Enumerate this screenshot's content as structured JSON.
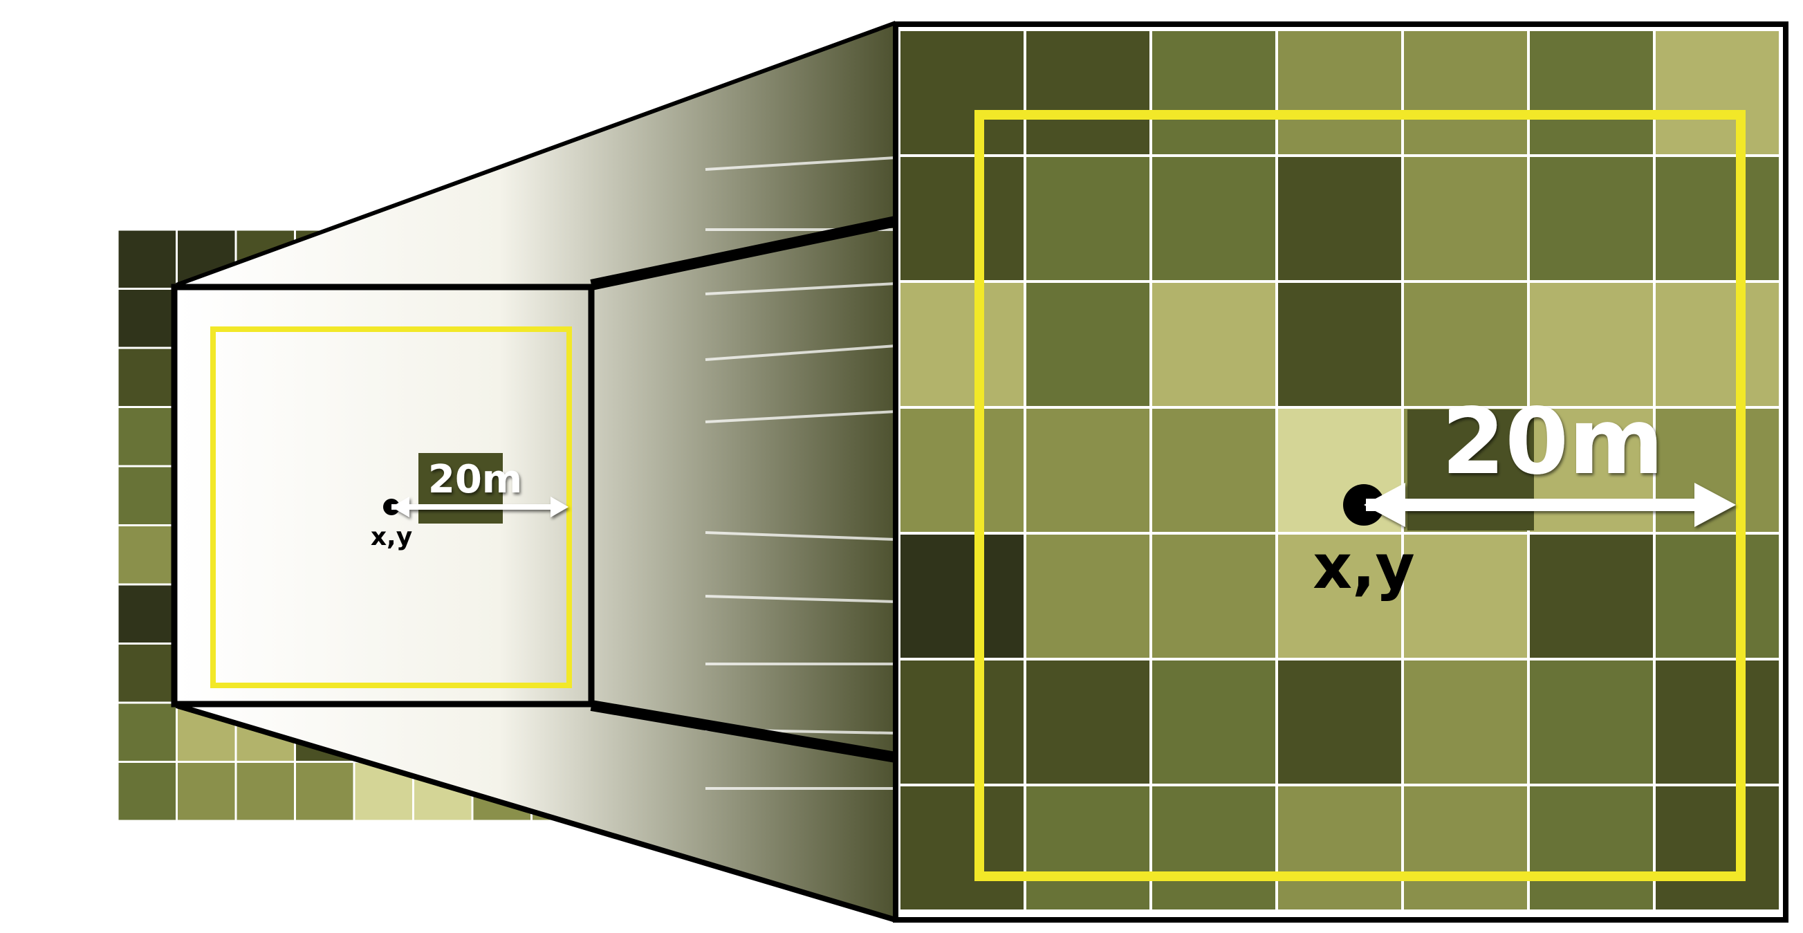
{
  "palette": {
    "darkest": "#30341b",
    "dark": "#4a5024",
    "mid": "#687337",
    "midlight": "#8a904b",
    "light": "#b2b36b",
    "lightest": "#d4d596",
    "grid_line": "#ffffff",
    "frame": "#000000",
    "highlight": "#f2e828",
    "label": "#ffffff",
    "dot": "#000000"
  },
  "small_grid": {
    "rows": [
      [
        "darkest",
        "darkest",
        "dark",
        "dark",
        "light",
        "light",
        "dark",
        "dark",
        "darkest",
        "darkest"
      ],
      [
        "darkest",
        "dark",
        "dark",
        "mid",
        "midlight",
        "midlight",
        "midlight",
        "light",
        "dark",
        "light"
      ],
      [
        "dark",
        "dark",
        "mid",
        "mid",
        "dark",
        "midlight",
        "mid",
        "midlight",
        "light",
        "light"
      ],
      [
        "mid",
        "light",
        "mid",
        "light",
        "dark",
        "midlight",
        "light",
        "midlight",
        "light",
        "dark"
      ],
      [
        "mid",
        "midlight",
        "midlight",
        "midlight",
        "lightest",
        "dark",
        "light",
        "midlight",
        "midlight",
        "mid"
      ],
      [
        "midlight",
        "darkest",
        "midlight",
        "midlight",
        "midlight",
        "light",
        "dark",
        "mid",
        "mid",
        "darkest"
      ],
      [
        "darkest",
        "dark",
        "dark",
        "mid",
        "dark",
        "midlight",
        "mid",
        "dark",
        "dark",
        "darkest"
      ],
      [
        "dark",
        "dark",
        "mid",
        "mid",
        "mid",
        "midlight",
        "midlight",
        "dark",
        "dark",
        "mid"
      ],
      [
        "mid",
        "light",
        "light",
        "dark",
        "midlight",
        "midlight",
        "light",
        "midlight",
        "light",
        "midlight"
      ],
      [
        "mid",
        "midlight",
        "midlight",
        "midlight",
        "lightest",
        "lightest",
        "midlight",
        "midlight",
        "midlight",
        "mid"
      ]
    ]
  },
  "large_grid": {
    "rows": [
      [
        "dark",
        "dark",
        "mid",
        "midlight",
        "midlight",
        "mid",
        "light"
      ],
      [
        "dark",
        "mid",
        "mid",
        "dark",
        "midlight",
        "mid",
        "mid"
      ],
      [
        "light",
        "mid",
        "light",
        "dark",
        "midlight",
        "light",
        "light"
      ],
      [
        "midlight",
        "midlight",
        "midlight",
        "lightest",
        "midlight",
        "light",
        "midlight"
      ],
      [
        "darkest",
        "midlight",
        "midlight",
        "light",
        "light",
        "dark",
        "mid"
      ],
      [
        "dark",
        "dark",
        "mid",
        "dark",
        "midlight",
        "mid",
        "dark"
      ],
      [
        "dark",
        "mid",
        "mid",
        "midlight",
        "midlight",
        "mid",
        "dark"
      ]
    ]
  },
  "labels": {
    "distance": "20m",
    "point": "x,y"
  }
}
